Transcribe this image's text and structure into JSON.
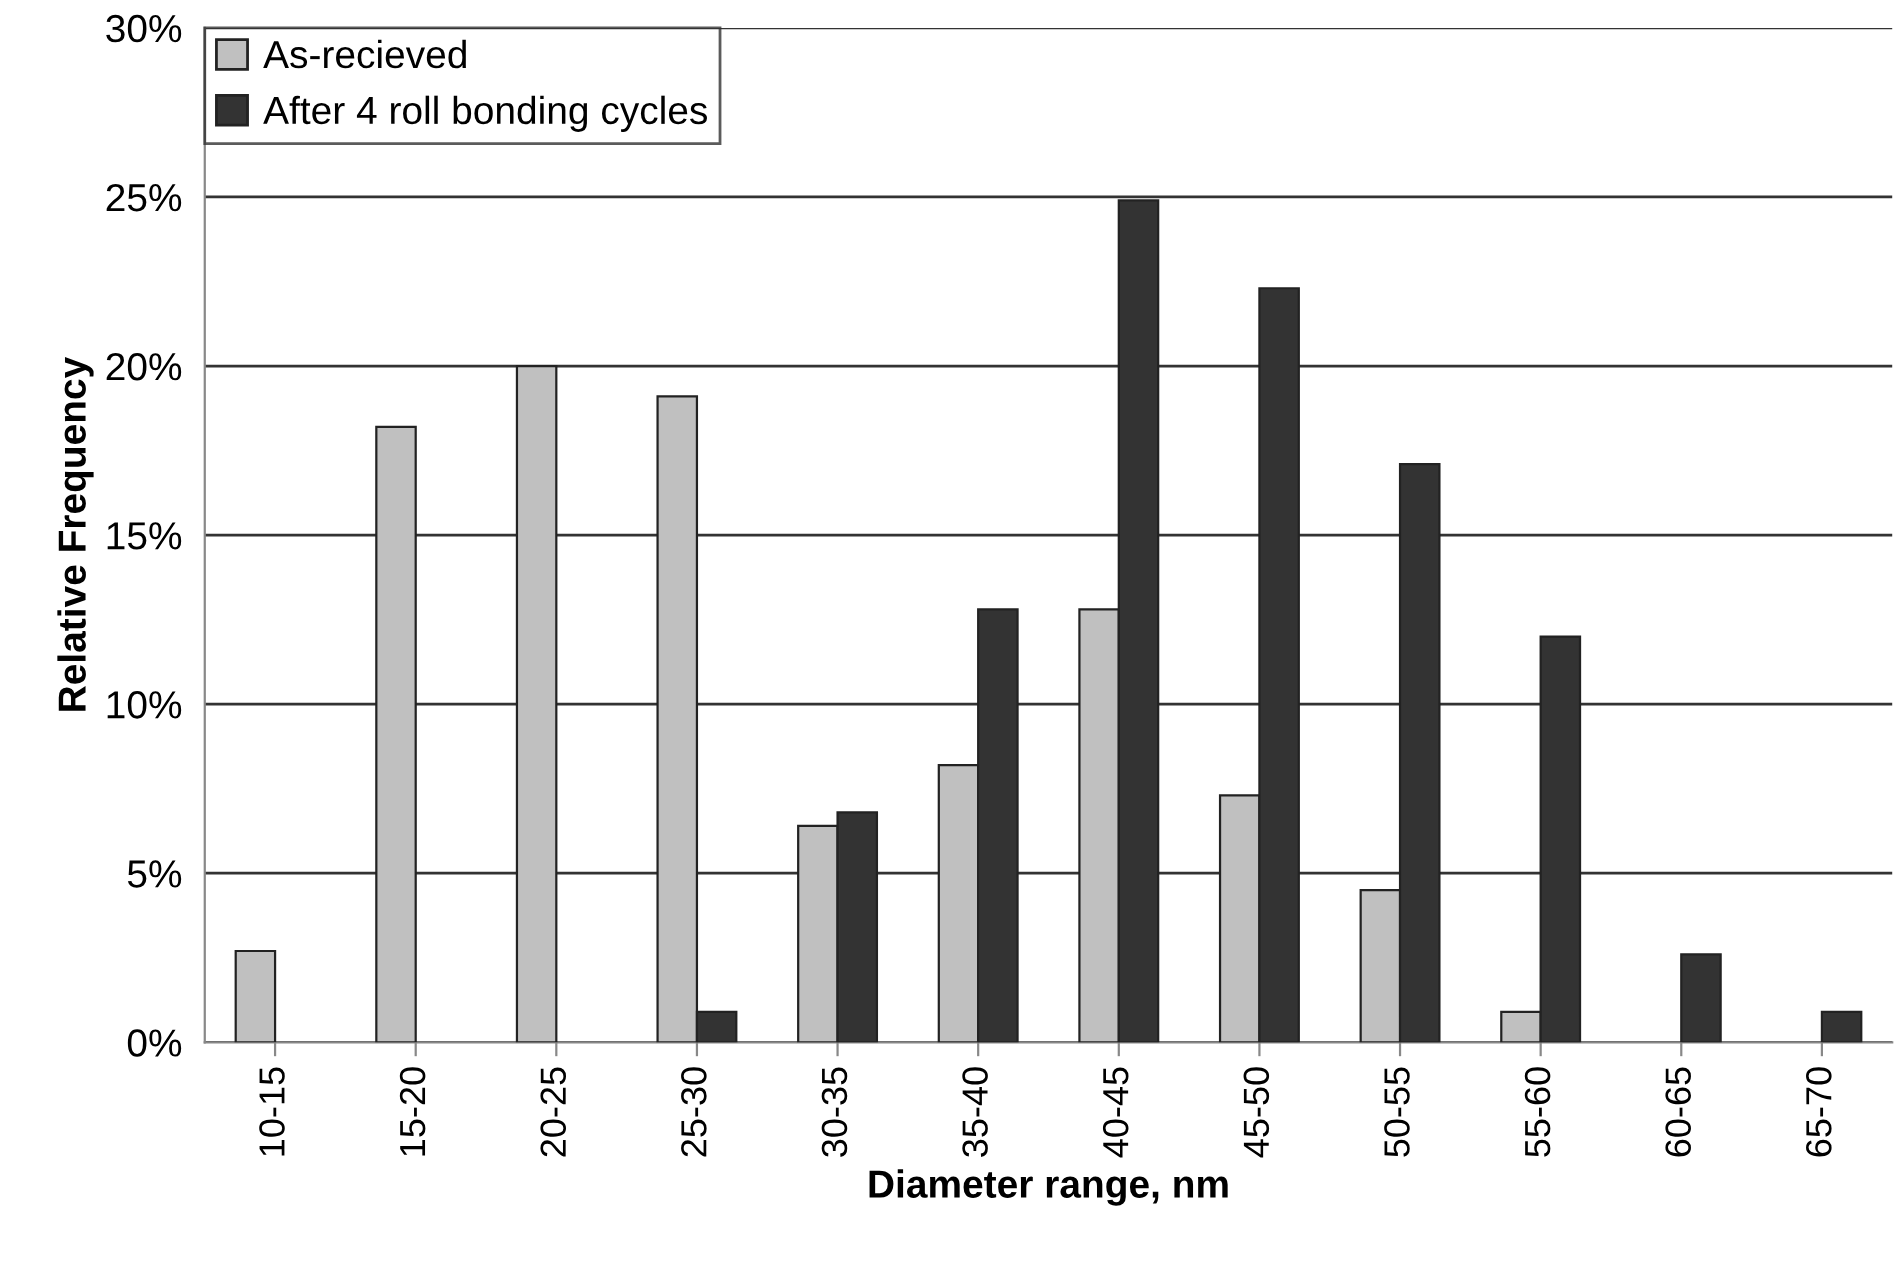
{
  "chart_data": {
    "type": "bar",
    "xlabel": "Diameter range, nm",
    "ylabel": "Relative Frequency",
    "categories": [
      "10-15",
      "15-20",
      "20-25",
      "25-30",
      "30-35",
      "35-40",
      "40-45",
      "45-50",
      "50-55",
      "55-60",
      "60-65",
      "65-70"
    ],
    "series": [
      {
        "name": "As-recieved",
        "color": "#c0c0c0",
        "values": [
          2.7,
          18.2,
          20.0,
          19.1,
          6.4,
          8.2,
          12.8,
          7.3,
          4.5,
          0.9,
          0,
          0
        ]
      },
      {
        "name": "After 4 roll bonding cycles",
        "color": "#333333",
        "values": [
          0,
          0,
          0,
          0.9,
          6.8,
          12.8,
          24.9,
          22.3,
          17.1,
          12.0,
          2.6,
          0.9
        ]
      }
    ],
    "ylim": [
      0,
      30
    ],
    "yticks": [
      {
        "value": 0,
        "label": "0%"
      },
      {
        "value": 5,
        "label": "5%"
      },
      {
        "value": 10,
        "label": "10%"
      },
      {
        "value": 15,
        "label": "15%"
      },
      {
        "value": 20,
        "label": "20%"
      },
      {
        "value": 25,
        "label": "25%"
      },
      {
        "value": 30,
        "label": "30%"
      }
    ],
    "grid": "y",
    "legend": "top left"
  }
}
